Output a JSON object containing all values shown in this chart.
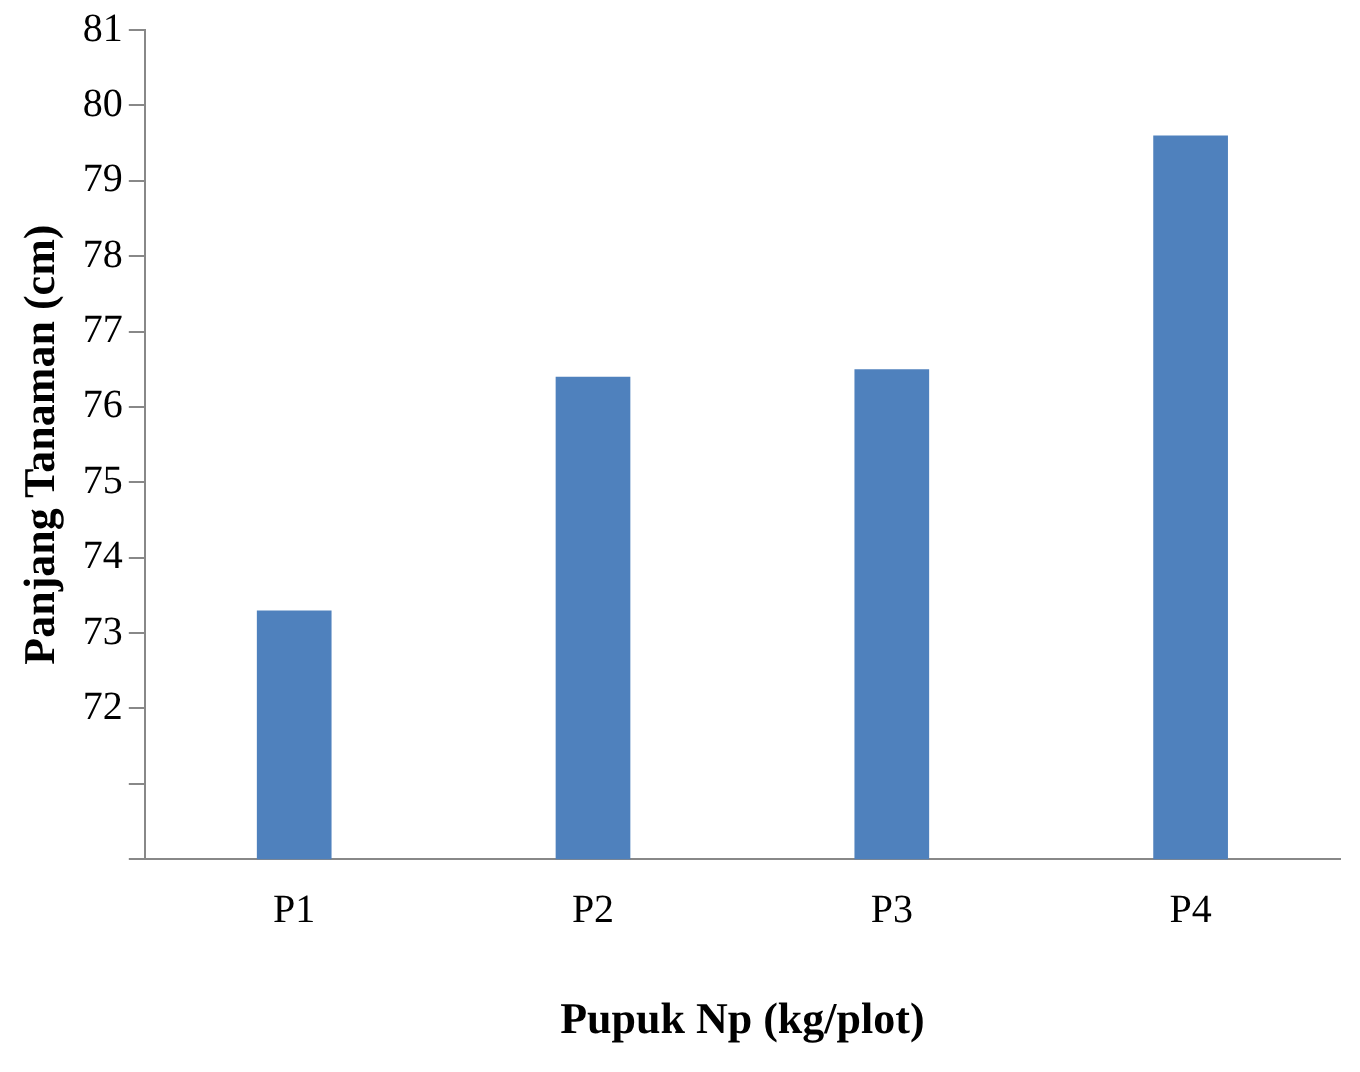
{
  "chart_data": {
    "type": "bar",
    "xlabel": "Pupuk Np (kg/plot)",
    "ylabel": "Panjang Tanaman (cm)",
    "categories": [
      "P1",
      "P2",
      "P3",
      "P4"
    ],
    "values": [
      73.3,
      76.4,
      76.5,
      79.6
    ],
    "color": "#4f81bd",
    "ylim": [
      70,
      81
    ],
    "yticks": [
      {
        "value": 70,
        "label": null
      },
      {
        "value": 71,
        "label": null
      },
      72,
      73,
      74,
      75,
      76,
      77,
      78,
      79,
      80,
      81
    ],
    "grid": false,
    "legend": false
  }
}
